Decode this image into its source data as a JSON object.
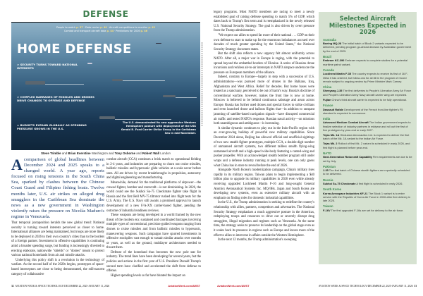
{
  "left_page": {
    "section": "DEFENSE",
    "photo": {
      "teaser_line1": [
        {
          "label": "People to watch",
          "page": "p. 37"
        },
        {
          "label": "Data center",
          "page": "p. 40"
        },
        {
          "label": "Aircraft competitions to monitor",
          "page": "p. 42"
        }
      ],
      "teaser_line2": [
        {
          "label": "Combat and transport aircraft data",
          "page": "p. 44"
        },
        {
          "label": "Predictions for 2026",
          "page": "p. 46"
        }
      ],
      "headline": "HOME DEFENSE",
      "bullets": [
        "> Security turns toward national interests",
        "> Complex barrages of missiles and drones drive changes to offense and defense",
        "> Budgets expand globally as spending pressure grows in the U.S."
      ],
      "caption": "The U.S. demonstrated its new aggressive Western Hemisphere posture with deployment of the USS Gerald R. Ford Carrier Strike Group in the Caribbean Sea in mid-November."
    },
    "byline": {
      "a1": "Steve Trimble",
      "and1": " and ",
      "a2": "Brian Everstine",
      "loc1": " Washington and ",
      "a3": "Tony Osborne",
      "and2": " and ",
      "a4": "Robert Wall",
      "loc2": " London"
    },
    "lead_dropcap": "A",
    "lead": " comparison of global headlines between December 2024 and 2025 speaks to a changed world. A year ago, reports focused on rising tensions in the South China Sea, sparked by clashes between the Chinese Coast Guard and Filipino fishing boats. Twelve months later, U.S. air strikes on alleged drug smugglers in the Caribbean Sea dominate the news as a new government in Washington violently raises the pressure on Nicolás Maduro's regime in Venezuela.",
    "col1_paragraphs": [
      "That temporal juxtaposition heralds the new global trend: National security is turning toward interests perceived as closer to home. International alliances are being maintained, but troops are more likely to be deployed in 2026 to their own country's cities than to the borders of a foreign partner. Investment in offensive capabilities is continuing amid a broader spending surge, but funding is increasingly diverted to erecting elaborate, nationwide \"shields\" or \"domes\" meant to protect various national homelands from air and missile attacks.",
      "Underlying this policy shift is a revolution in the technology of warfare. As the second half of the 2020s begins, prototypes of space-based interceptors are close to being demonstrated, the still-nascent category of collaborative"
    ],
    "col2_paragraphs": [
      "combat aircraft (CCA) continues a brisk march to operational fielding in 2-4 years, and industries are preparing to churn out cruise missiles, ballistic missiles and hypersonic glide vehicles at a scale never before seen. All are driven by recent breakthroughs in propulsion, autonomy and digital engineering and manufacturing.",
      "Meanwhile, demand for the traditional platforms of airpower—the crewed fighter, bomber and rotorcraft—is not diminishing. In 2026, the world could see the Sukhoi Su-75 Checkmate fighter take flight in Russia and the first Bell MV-75 tiltrotor rushed into flight tests for the U.S. Army. The U.S. Navy still awaits a promised approval to launch development of a new F/A-XX carrier-based fighter, pending the outcome of industrial readiness reviews.",
      "These weapons are being developed in a world framed by the new threat of the modern era: sustained and coordinated barrages involving multiple types of conventional, precision-guided weapons ranging from drones to cruise missiles and from ballistic missiles to hypersonic, maneuvering weapons. Such campaigns have spurred investments in offensive stockpiles vast enough to sustain similar attacks over months or years, as well as the ground, multilayer architectures needed to thwart them.",
      "Defense of the homeland thus becomes the new pole star for industry. The trend lines have been developing for several years, but the policies and actions in the first year of U.S. President Donald Trump's second term have clarified and accelerated the shift from defense to offense.",
      "Higher spending levels so far have blunted the impact on"
    ],
    "footer": {
      "page": "32",
      "pub": "AVIATION WEEK & SPACE TECHNOLOGY/DECEMBER 22, 2025-JANUARY 11, 2026",
      "url": "AviationWeek.com/AWST"
    }
  },
  "right_page": {
    "col_paragraphs": [
      "legacy programs. Most NATO members are racing to meet a newly established goal of raising defense spending to match 5% of GDP, which dates back to Trump's first term and is reemphasized in the newly released U.S. National Security Strategy. The goal is also driven by overt pressure from the Trump administration.",
      "\"We expect our allies to spend far more of their national . . . GDP on their own defense to start to make up for the enormous imbalances accrued over decades of much greater spending by the United States,\" the National Security Strategy document states.",
      "But the shift also reflects a new urgency felt almost uniformly across NATO. After all, a major war in Europe is raging, with the potential to spread beyond the embattled borders of Ukraine. A series of Russian drone incursions and reckless air-to-air intercepts in NATO airspace underscore the pressure on European members of the alliance.",
      "Indeed, contrary to Europe—largely in step with a succession of U.S. administrations—was pursued more of drones in the Balkans, Iraq, Afghanistan and West Africa. Relief for decades. But home bases were treated as a sanctuary, perceived to be out of harm's way. Russia's doctrine of conventional warfare, however, makes the front line is now at home. Moscow is believed to be behind continuous sabotage and arson across Europe. Russia has further used drones and special forces to strike civilians and even launched drone and balloon flights that—in addition to rampant jamming of satellite-based navigation signals—have disrupted commercial air traffic and tested NATO's response. Russian naval activity—on missions both unambiguous and ambiguous—is increasing.",
      "A similar dynamic continues to play out in the Indo-Pacific region with an ever-growing buildup of powerful new military capabilities. Since December 2024 alone, Beijing has allowed official and unofficial sightings of two new stealth fighter prototypes, multiple CCA, a double-digit number of unmanned aircraft systems, two different tailless stealth flying-wing unmanned aircraft and a high-speed wide-body featuring a canted-wing and pusher propeller. With an acknowledged stealth bomber program still under wraps and a defense industry running at peak levels, one can only guess what China has in store to reveal before the end of 2026.",
      "Alongside North Korea's modernization campaign, China's military rises rapidly in its military region. Taiwan plans to begin implementing a $40 billion plan to upgrade its military capabilities in 2026 even while already receiving upgraded Lockheed Martin F-16 and long-sought General Atomics Aeronautical Systems Inc. MQ-9Bs. Japan and South Korea are developing new systems, even as extensive military aircraft with an emphasis on finding roles for domestic industrial capabilities.",
      "In the U.S., the Trump administration is seeking to redefine the country's relationship with allies, partners, competitors and adversaries. The National Security Strategy emphasizes a much aggressive posture in the Americas, redeploying troops and resources to drive out or severely disrupt drug smugglers, illegal migration and regimes such as Venezuela. At the same time, the strategy seeks to preserve its leadership on the global stage even as it scales back its presence in regions such as Europe and leaves more of the effort to allies to intervene in affairs outside the Western Hemisphere.",
      "In the next 12 months, the Trump administration's sweeping"
    ],
    "sidebar": {
      "title": "Selected Aircraft Milestones Expected in 2026",
      "groups": [
        {
          "country": "Australia",
          "entries": [
            {
              "name": "Boeing MQ-28",
              "text": " The initial batch of Block 2 variants expected to be delivered, pending program go-ahead decision by Australian government by the end of 2025."
            }
          ]
        },
        {
          "country": "Brazil",
          "entries": [
            {
              "name": "Embraer KC-390",
              "text": " Embraer expects to complete studies for a potential maritime patrol variant."
            }
          ]
        },
        {
          "country": "Canada",
          "entries": [
            {
              "name": "Lockheed Martin F-35",
              "text": " The country expects to receive its first of 16 F-35As it has ordered, but follow-ons for all 88 in the program of record remain subject to ongoing review by Prime Minister Mark Carney."
            }
          ]
        },
        {
          "country": "China",
          "entries": [
            {
              "name": "Shenyang J-35",
              "text": " The first deliveries to People's Liberation Army Air Force and People's Liberation Army Navy aircraft carrier wing are expected."
            },
            {
              "name": "Fujian",
              "text": " China's third aircraft carrier is expected to be fully operational."
            }
          ]
        },
        {
          "country": "France",
          "entries": [
            {
              "name": "Dassault Rafale",
              "text": " Development of the French front-line fighter's F5 standard is expected to commence."
            }
          ]
        },
        {
          "country": "India",
          "entries": [
            {
              "name": "Advanced Medium Combat Aircraft",
              "text": " The Indian government expects to finalize selection of industry partners in midyear and roll out the first of five prototypes by year-end or early 2027."
            },
            {
              "name": "Tejas Mk. 1A",
              "text": " Hindustan Aeronautics Ltd. is expected to deliver the first batch of the Mk. 1A variant to the Indian Air Force."
            },
            {
              "name": "Tejas Mk. 2",
              "text": " Rollout of first Mk. 2 variant is scheduled in early 2026, and first flight is planned before year-end."
            }
          ]
        },
        {
          "country": "NATO",
          "entries": [
            {
              "name": "Next-Generation Rotorcraft Capability",
              "text": " Firm requirements are due to be set by July."
            }
          ]
        },
        {
          "country": "Pakistan",
          "entries": [
            {
              "name": "J-35",
              "text": " The first batch of Chinese stealth fighters are reportedly scheduled to be delivered."
            }
          ]
        },
        {
          "country": "Russia",
          "entries": [
            {
              "name": "Sukhoi Su-75 Checkmate",
              "text": " A first flight is scheduled in early 2026."
            }
          ]
        },
        {
          "country": "South Korea",
          "entries": [
            {
              "name": "Korea Aerospace Industries KF-21",
              "text": " The Block 1 variant is to enter service with the Republic of Korea Air Force in 2026 after first delivery in late 2025."
            }
          ]
        },
        {
          "country": "Taiwan",
          "entries": [
            {
              "name": "F-16V",
              "text": " The first upgraded F-16s are set for delivery to the air force."
            }
          ]
        }
      ]
    },
    "footer": {
      "url": "AviationWeek.com/AWST",
      "pub": "AVIATION WEEK & SPACE TECHNOLOGY/DECEMBER 22, 2025-JANUARY 11, 2026",
      "page": "33"
    }
  },
  "colors": {
    "accent_green": "#3f7f4f",
    "sidebar_bg": "#d6e2d1",
    "url_red": "#c8202f",
    "lead_blue": "#1a3a68"
  }
}
